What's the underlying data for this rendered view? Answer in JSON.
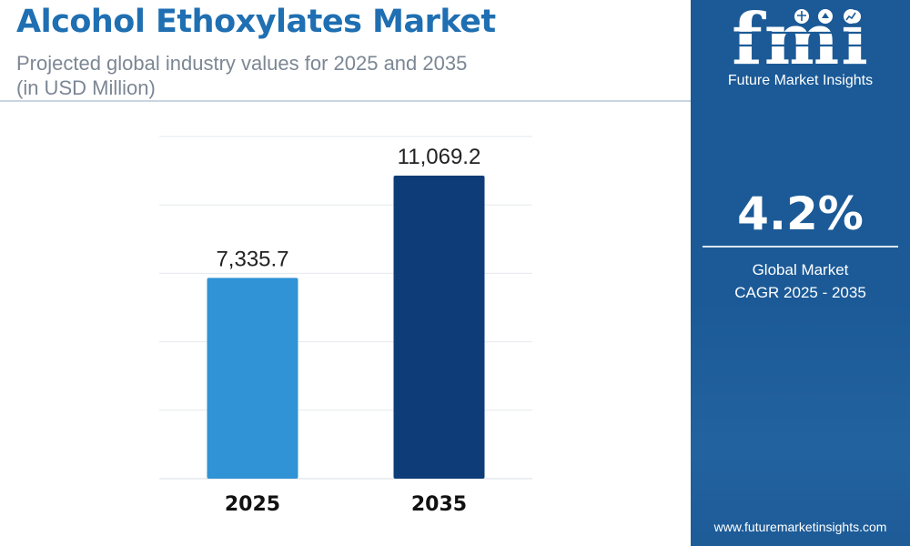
{
  "header": {
    "title": "Alcohol Ethoxylates Market",
    "subtitle_line1": "Projected global industry values for 2025 and 2035",
    "subtitle_line2": "(in USD Million)"
  },
  "chart_data": {
    "type": "bar",
    "categories": [
      "2025",
      "2035"
    ],
    "values": [
      7335.7,
      11069.2
    ],
    "value_labels": [
      "7,335.7",
      "11,069.2"
    ],
    "colors": [
      "#2f93d6",
      "#0d3c78"
    ],
    "ylim": [
      0,
      12500
    ],
    "grid": true,
    "legend": "none"
  },
  "sidebar": {
    "logo_text": "fmi",
    "logo_subtitle": "Future Market Insights",
    "cagr_value": "4.2%",
    "cagr_label_line1": "Global Market",
    "cagr_label_line2": "CAGR 2025 - 2035",
    "website": "www.futuremarketinsights.com",
    "background_color": "#1b5a97"
  }
}
